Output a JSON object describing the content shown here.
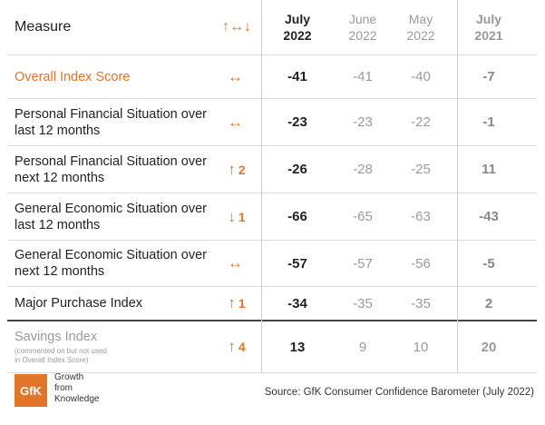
{
  "header": {
    "measure": "Measure",
    "change_icon": "↑↔↓",
    "col_jul22": [
      "July",
      "2022"
    ],
    "col_jun22": [
      "June",
      "2022"
    ],
    "col_may22": [
      "May",
      "2022"
    ],
    "col_jul21": [
      "July",
      "2021"
    ]
  },
  "rows": [
    {
      "measure": "Overall Index Score",
      "change": "↔",
      "change_num": "",
      "jul22": "-41",
      "jun22": "-41",
      "may22": "-40",
      "jul21": "-7"
    },
    {
      "measure": "Personal Financial Situation over last 12 months",
      "change": "↔",
      "change_num": "",
      "jul22": "-23",
      "jun22": "-23",
      "may22": "-22",
      "jul21": "-1"
    },
    {
      "measure": "Personal Financial Situation over next 12 months",
      "change": "↑",
      "change_num": "2",
      "jul22": "-26",
      "jun22": "-28",
      "may22": "-25",
      "jul21": "11"
    },
    {
      "measure": "General Economic Situation over last 12 months",
      "change": "↓",
      "change_num": "1",
      "jul22": "-66",
      "jun22": "-65",
      "may22": "-63",
      "jul21": "-43"
    },
    {
      "measure": "General Economic Situation over next 12 months",
      "change": "↔",
      "change_num": "",
      "jul22": "-57",
      "jun22": "-57",
      "may22": "-56",
      "jul21": "-5"
    },
    {
      "measure": "Major Purchase Index",
      "change": "↑",
      "change_num": "1",
      "jul22": "-34",
      "jun22": "-35",
      "may22": "-35",
      "jul21": "2"
    }
  ],
  "savings": {
    "measure": "Savings Index",
    "note": "(commented on but not used in Overall Index Score)",
    "change": "↑",
    "change_num": "4",
    "jul22": "13",
    "jun22": "9",
    "may22": "10",
    "jul21": "20"
  },
  "footer": {
    "logo": "GfK",
    "logo_text": [
      "Growth",
      "from",
      "Knowledge"
    ],
    "source": "Source: GfK Consumer Confidence Barometer (July 2022)"
  },
  "colors": {
    "accent": "#e27527",
    "muted": "#9a9a9a"
  }
}
